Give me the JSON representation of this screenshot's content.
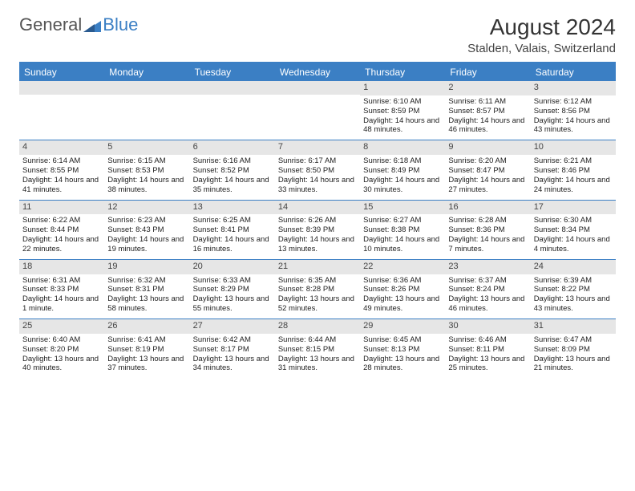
{
  "logo": {
    "general": "General",
    "blue": "Blue"
  },
  "title": "August 2024",
  "location": "Stalden, Valais, Switzerland",
  "colors": {
    "accent": "#3b7fc4",
    "header_bg": "#3b7fc4",
    "header_text": "#ffffff",
    "daynum_bg": "#e6e6e6",
    "text": "#222222",
    "background": "#ffffff"
  },
  "day_headers": [
    "Sunday",
    "Monday",
    "Tuesday",
    "Wednesday",
    "Thursday",
    "Friday",
    "Saturday"
  ],
  "weeks": [
    [
      {
        "day": null
      },
      {
        "day": null
      },
      {
        "day": null
      },
      {
        "day": null
      },
      {
        "day": 1,
        "sunrise": "6:10 AM",
        "sunset": "8:59 PM",
        "daylight": "14 hours and 48 minutes."
      },
      {
        "day": 2,
        "sunrise": "6:11 AM",
        "sunset": "8:57 PM",
        "daylight": "14 hours and 46 minutes."
      },
      {
        "day": 3,
        "sunrise": "6:12 AM",
        "sunset": "8:56 PM",
        "daylight": "14 hours and 43 minutes."
      }
    ],
    [
      {
        "day": 4,
        "sunrise": "6:14 AM",
        "sunset": "8:55 PM",
        "daylight": "14 hours and 41 minutes."
      },
      {
        "day": 5,
        "sunrise": "6:15 AM",
        "sunset": "8:53 PM",
        "daylight": "14 hours and 38 minutes."
      },
      {
        "day": 6,
        "sunrise": "6:16 AM",
        "sunset": "8:52 PM",
        "daylight": "14 hours and 35 minutes."
      },
      {
        "day": 7,
        "sunrise": "6:17 AM",
        "sunset": "8:50 PM",
        "daylight": "14 hours and 33 minutes."
      },
      {
        "day": 8,
        "sunrise": "6:18 AM",
        "sunset": "8:49 PM",
        "daylight": "14 hours and 30 minutes."
      },
      {
        "day": 9,
        "sunrise": "6:20 AM",
        "sunset": "8:47 PM",
        "daylight": "14 hours and 27 minutes."
      },
      {
        "day": 10,
        "sunrise": "6:21 AM",
        "sunset": "8:46 PM",
        "daylight": "14 hours and 24 minutes."
      }
    ],
    [
      {
        "day": 11,
        "sunrise": "6:22 AM",
        "sunset": "8:44 PM",
        "daylight": "14 hours and 22 minutes."
      },
      {
        "day": 12,
        "sunrise": "6:23 AM",
        "sunset": "8:43 PM",
        "daylight": "14 hours and 19 minutes."
      },
      {
        "day": 13,
        "sunrise": "6:25 AM",
        "sunset": "8:41 PM",
        "daylight": "14 hours and 16 minutes."
      },
      {
        "day": 14,
        "sunrise": "6:26 AM",
        "sunset": "8:39 PM",
        "daylight": "14 hours and 13 minutes."
      },
      {
        "day": 15,
        "sunrise": "6:27 AM",
        "sunset": "8:38 PM",
        "daylight": "14 hours and 10 minutes."
      },
      {
        "day": 16,
        "sunrise": "6:28 AM",
        "sunset": "8:36 PM",
        "daylight": "14 hours and 7 minutes."
      },
      {
        "day": 17,
        "sunrise": "6:30 AM",
        "sunset": "8:34 PM",
        "daylight": "14 hours and 4 minutes."
      }
    ],
    [
      {
        "day": 18,
        "sunrise": "6:31 AM",
        "sunset": "8:33 PM",
        "daylight": "14 hours and 1 minute."
      },
      {
        "day": 19,
        "sunrise": "6:32 AM",
        "sunset": "8:31 PM",
        "daylight": "13 hours and 58 minutes."
      },
      {
        "day": 20,
        "sunrise": "6:33 AM",
        "sunset": "8:29 PM",
        "daylight": "13 hours and 55 minutes."
      },
      {
        "day": 21,
        "sunrise": "6:35 AM",
        "sunset": "8:28 PM",
        "daylight": "13 hours and 52 minutes."
      },
      {
        "day": 22,
        "sunrise": "6:36 AM",
        "sunset": "8:26 PM",
        "daylight": "13 hours and 49 minutes."
      },
      {
        "day": 23,
        "sunrise": "6:37 AM",
        "sunset": "8:24 PM",
        "daylight": "13 hours and 46 minutes."
      },
      {
        "day": 24,
        "sunrise": "6:39 AM",
        "sunset": "8:22 PM",
        "daylight": "13 hours and 43 minutes."
      }
    ],
    [
      {
        "day": 25,
        "sunrise": "6:40 AM",
        "sunset": "8:20 PM",
        "daylight": "13 hours and 40 minutes."
      },
      {
        "day": 26,
        "sunrise": "6:41 AM",
        "sunset": "8:19 PM",
        "daylight": "13 hours and 37 minutes."
      },
      {
        "day": 27,
        "sunrise": "6:42 AM",
        "sunset": "8:17 PM",
        "daylight": "13 hours and 34 minutes."
      },
      {
        "day": 28,
        "sunrise": "6:44 AM",
        "sunset": "8:15 PM",
        "daylight": "13 hours and 31 minutes."
      },
      {
        "day": 29,
        "sunrise": "6:45 AM",
        "sunset": "8:13 PM",
        "daylight": "13 hours and 28 minutes."
      },
      {
        "day": 30,
        "sunrise": "6:46 AM",
        "sunset": "8:11 PM",
        "daylight": "13 hours and 25 minutes."
      },
      {
        "day": 31,
        "sunrise": "6:47 AM",
        "sunset": "8:09 PM",
        "daylight": "13 hours and 21 minutes."
      }
    ]
  ],
  "labels": {
    "sunrise": "Sunrise: ",
    "sunset": "Sunset: ",
    "daylight": "Daylight: "
  }
}
